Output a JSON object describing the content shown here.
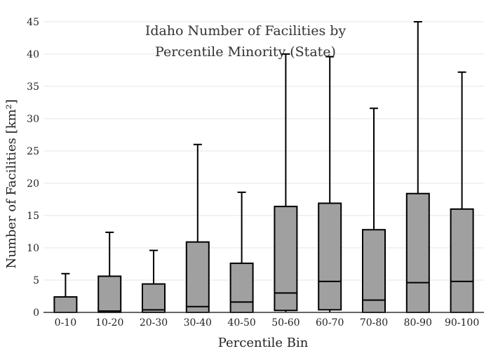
{
  "chart_data": {
    "type": "box",
    "title_lines": [
      "Idaho Number of Facilities by",
      "Percentile Minority (State)"
    ],
    "xlabel": "Percentile Bin",
    "ylabel": "Number of Facilities  [km²]",
    "ylim": [
      0,
      45
    ],
    "yticks": [
      0,
      5,
      10,
      15,
      20,
      25,
      30,
      35,
      40,
      45
    ],
    "grid": true,
    "box_color": "#a0a0a0",
    "categories": [
      "0-10",
      "10-20",
      "20-30",
      "30-40",
      "40-50",
      "50-60",
      "60-70",
      "70-80",
      "80-90",
      "90-100"
    ],
    "series": [
      {
        "min": 0,
        "q1": 0,
        "median": 0,
        "q3": 2.4,
        "max": 6.0
      },
      {
        "min": 0,
        "q1": 0,
        "median": 0.2,
        "q3": 5.6,
        "max": 12.4
      },
      {
        "min": 0,
        "q1": 0,
        "median": 0.4,
        "q3": 4.4,
        "max": 9.6
      },
      {
        "min": 0,
        "q1": 0,
        "median": 0.9,
        "q3": 10.9,
        "max": 26.0
      },
      {
        "min": 0,
        "q1": 0,
        "median": 1.6,
        "q3": 7.6,
        "max": 18.6
      },
      {
        "min": 0,
        "q1": 0.3,
        "median": 3.0,
        "q3": 16.4,
        "max": 40.0
      },
      {
        "min": 0,
        "q1": 0.4,
        "median": 4.8,
        "q3": 16.9,
        "max": 39.6
      },
      {
        "min": 0,
        "q1": 0,
        "median": 1.9,
        "q3": 12.8,
        "max": 31.6
      },
      {
        "min": 0,
        "q1": 0,
        "median": 4.6,
        "q3": 18.4,
        "max": 45.0
      },
      {
        "min": 0,
        "q1": 0,
        "median": 4.8,
        "q3": 16.0,
        "max": 37.2
      }
    ]
  }
}
